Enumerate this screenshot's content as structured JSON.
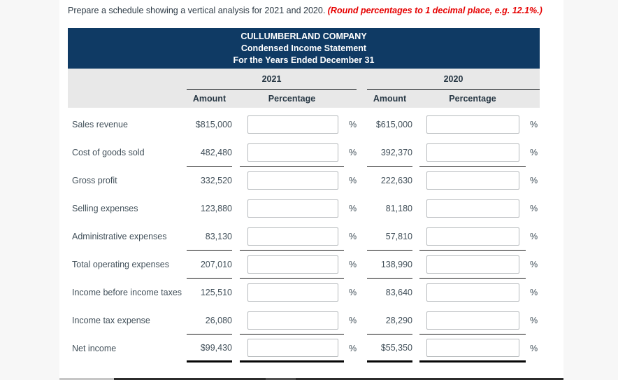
{
  "instruction": {
    "text": "Prepare a schedule showing a vertical analysis for 2021 and 2020. ",
    "highlight": "(Round percentages to 1 decimal place, e.g. 12.1%.)"
  },
  "statement_header": {
    "company": "CULLUMBERLAND COMPANY",
    "title": "Condensed Income Statement",
    "subtitle": "For the Years Ended December 31"
  },
  "columns": {
    "year1": "2021",
    "year2": "2020",
    "amount_label": "Amount",
    "percentage_label": "Percentage",
    "percent_symbol": "%"
  },
  "rows": [
    {
      "label": "Sales revenue",
      "amount_2021": "$815,000",
      "pct_2021": "",
      "amount_2020": "$615,000",
      "pct_2020": "",
      "underline": "none"
    },
    {
      "label": "Cost of goods sold",
      "amount_2021": "482,480",
      "pct_2021": "",
      "amount_2020": "392,370",
      "pct_2020": "",
      "underline": "single"
    },
    {
      "label": "Gross profit",
      "amount_2021": "332,520",
      "pct_2021": "",
      "amount_2020": "222,630",
      "pct_2020": "",
      "underline": "none"
    },
    {
      "label": "Selling expenses",
      "amount_2021": "123,880",
      "pct_2021": "",
      "amount_2020": "81,180",
      "pct_2020": "",
      "underline": "none"
    },
    {
      "label": "Administrative expenses",
      "amount_2021": "83,130",
      "pct_2021": "",
      "amount_2020": "57,810",
      "pct_2020": "",
      "underline": "single"
    },
    {
      "label": "Total operating expenses",
      "amount_2021": "207,010",
      "pct_2021": "",
      "amount_2020": "138,990",
      "pct_2020": "",
      "underline": "single"
    },
    {
      "label": "Income before income taxes",
      "amount_2021": "125,510",
      "pct_2021": "",
      "amount_2020": "83,640",
      "pct_2020": "",
      "underline": "none"
    },
    {
      "label": "Income tax expense",
      "amount_2021": "26,080",
      "pct_2021": "",
      "amount_2020": "28,290",
      "pct_2020": "",
      "underline": "single"
    },
    {
      "label": "Net income",
      "amount_2021": "$99,430",
      "pct_2021": "",
      "amount_2020": "$55,350",
      "pct_2020": "",
      "underline": "thick"
    }
  ],
  "colors": {
    "header_navy": "#0f3a64",
    "band_gray": "#e8e8e8",
    "instruction_red": "#e60000",
    "text": "#42505a",
    "rule_line": "#1c1c1c",
    "page_background": "#f7f7f7"
  }
}
